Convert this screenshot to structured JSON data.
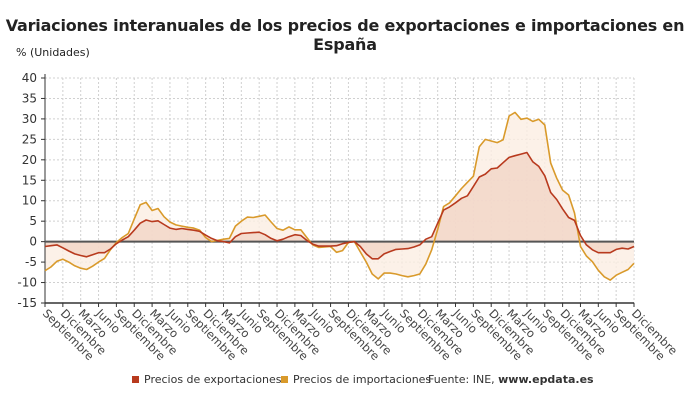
{
  "title": "Variaciones interanuales de los precios de exportaciones e importaciones en España",
  "legend": {
    "source_prefix": "Fuente: INE, ",
    "source_site": "www.epdata.es"
  },
  "chart_data": {
    "type": "line",
    "title": "Variaciones interanuales de los precios de exportaciones e importaciones en España",
    "ylabel": "% (Unidades)",
    "xlabel": "",
    "ylim": [
      -15,
      40
    ],
    "yticks": [
      40,
      35,
      30,
      25,
      20,
      15,
      10,
      5,
      0,
      -5,
      -10,
      -15
    ],
    "grid": true,
    "legend_position": "bottom",
    "area_fill_to_zero": true,
    "x_tick_every_n_points": 3,
    "x_tick_labels": [
      "Septiembre",
      "Diciembre",
      "Marzo",
      "Junio",
      "Septiembre",
      "Diciembre",
      "Marzo",
      "Junio",
      "Septiembre",
      "Diciembre",
      "Marzo",
      "Junio",
      "Septiembre",
      "Diciembre",
      "Marzo",
      "Junio",
      "Septiembre",
      "Diciembre",
      "Marzo",
      "Junio",
      "Septiembre",
      "Diciembre",
      "Marzo",
      "Junio",
      "Septiembre",
      "Diciembre",
      "Marzo",
      "Junio",
      "Septiembre",
      "Diciembre",
      "Marzo",
      "Junio",
      "Septiembre",
      "Diciembre"
    ],
    "series": [
      {
        "name": "Precios de exportaciones",
        "color": "#b83a1e",
        "fill": "#f2d3c4",
        "values": [
          -1.2,
          -1.0,
          -0.8,
          -1.5,
          -2.3,
          -3.0,
          -3.4,
          -3.7,
          -3.2,
          -2.7,
          -2.7,
          -1.8,
          -0.5,
          0.4,
          1.2,
          2.8,
          4.5,
          5.3,
          4.9,
          5.1,
          4.2,
          3.3,
          3.0,
          3.2,
          3.0,
          2.8,
          2.5,
          1.6,
          0.8,
          0.2,
          0,
          -0.3,
          1.2,
          2.0,
          2.1,
          2.2,
          2.3,
          1.7,
          0.8,
          0.2,
          0.6,
          1.2,
          1.7,
          1.5,
          0.3,
          -0.6,
          -1.1,
          -1.1,
          -1.1,
          -1.0,
          -0.5,
          -0.2,
          0,
          -1.2,
          -3.0,
          -4.2,
          -4.2,
          -3.0,
          -2.4,
          -1.9,
          -1.8,
          -1.7,
          -1.3,
          -0.8,
          0.6,
          1.2,
          4.5,
          7.7,
          8.5,
          9.5,
          10.6,
          11.2,
          13.5,
          15.8,
          16.5,
          17.8,
          18.0,
          19.3,
          20.6,
          21.0,
          21.4,
          21.8,
          19.5,
          18.4,
          16.1,
          12.0,
          10.3,
          8.0,
          5.9,
          5.2,
          1.5,
          -0.8,
          -2.0,
          -2.7,
          -2.7,
          -2.7,
          -1.9,
          -1.6,
          -1.8,
          -1.2
        ]
      },
      {
        "name": "Precios de importaciones",
        "color": "#d99a2b",
        "fill": "#fbeee2",
        "values": [
          -7.1,
          -6.2,
          -4.8,
          -4.3,
          -5.0,
          -5.9,
          -6.5,
          -6.8,
          -6.0,
          -5.0,
          -4.1,
          -2.0,
          -0.2,
          1.0,
          2.0,
          5.5,
          9.0,
          9.6,
          7.6,
          8.1,
          6.1,
          4.8,
          4.1,
          3.8,
          3.5,
          3.3,
          2.8,
          1.0,
          0,
          0.3,
          0.6,
          0.8,
          3.8,
          5.0,
          6.0,
          5.9,
          6.2,
          6.5,
          4.8,
          3.2,
          2.8,
          3.6,
          2.9,
          2.9,
          1.0,
          -0.8,
          -1.4,
          -1.3,
          -1.2,
          -2.6,
          -2.2,
          -0.2,
          0,
          -2.5,
          -5.0,
          -7.9,
          -9.1,
          -7.7,
          -7.7,
          -7.9,
          -8.3,
          -8.6,
          -8.3,
          -7.9,
          -5.5,
          -2.0,
          3.0,
          8.6,
          9.5,
          11.2,
          13.0,
          14.5,
          16.0,
          23.2,
          25.0,
          24.6,
          24.2,
          24.9,
          30.7,
          31.6,
          29.9,
          30.2,
          29.4,
          29.9,
          28.5,
          19.2,
          15.5,
          12.6,
          11.4,
          7.0,
          -1.2,
          -3.5,
          -4.9,
          -7.0,
          -8.6,
          -9.4,
          -8.2,
          -7.5,
          -6.8,
          -5.3
        ]
      }
    ]
  }
}
